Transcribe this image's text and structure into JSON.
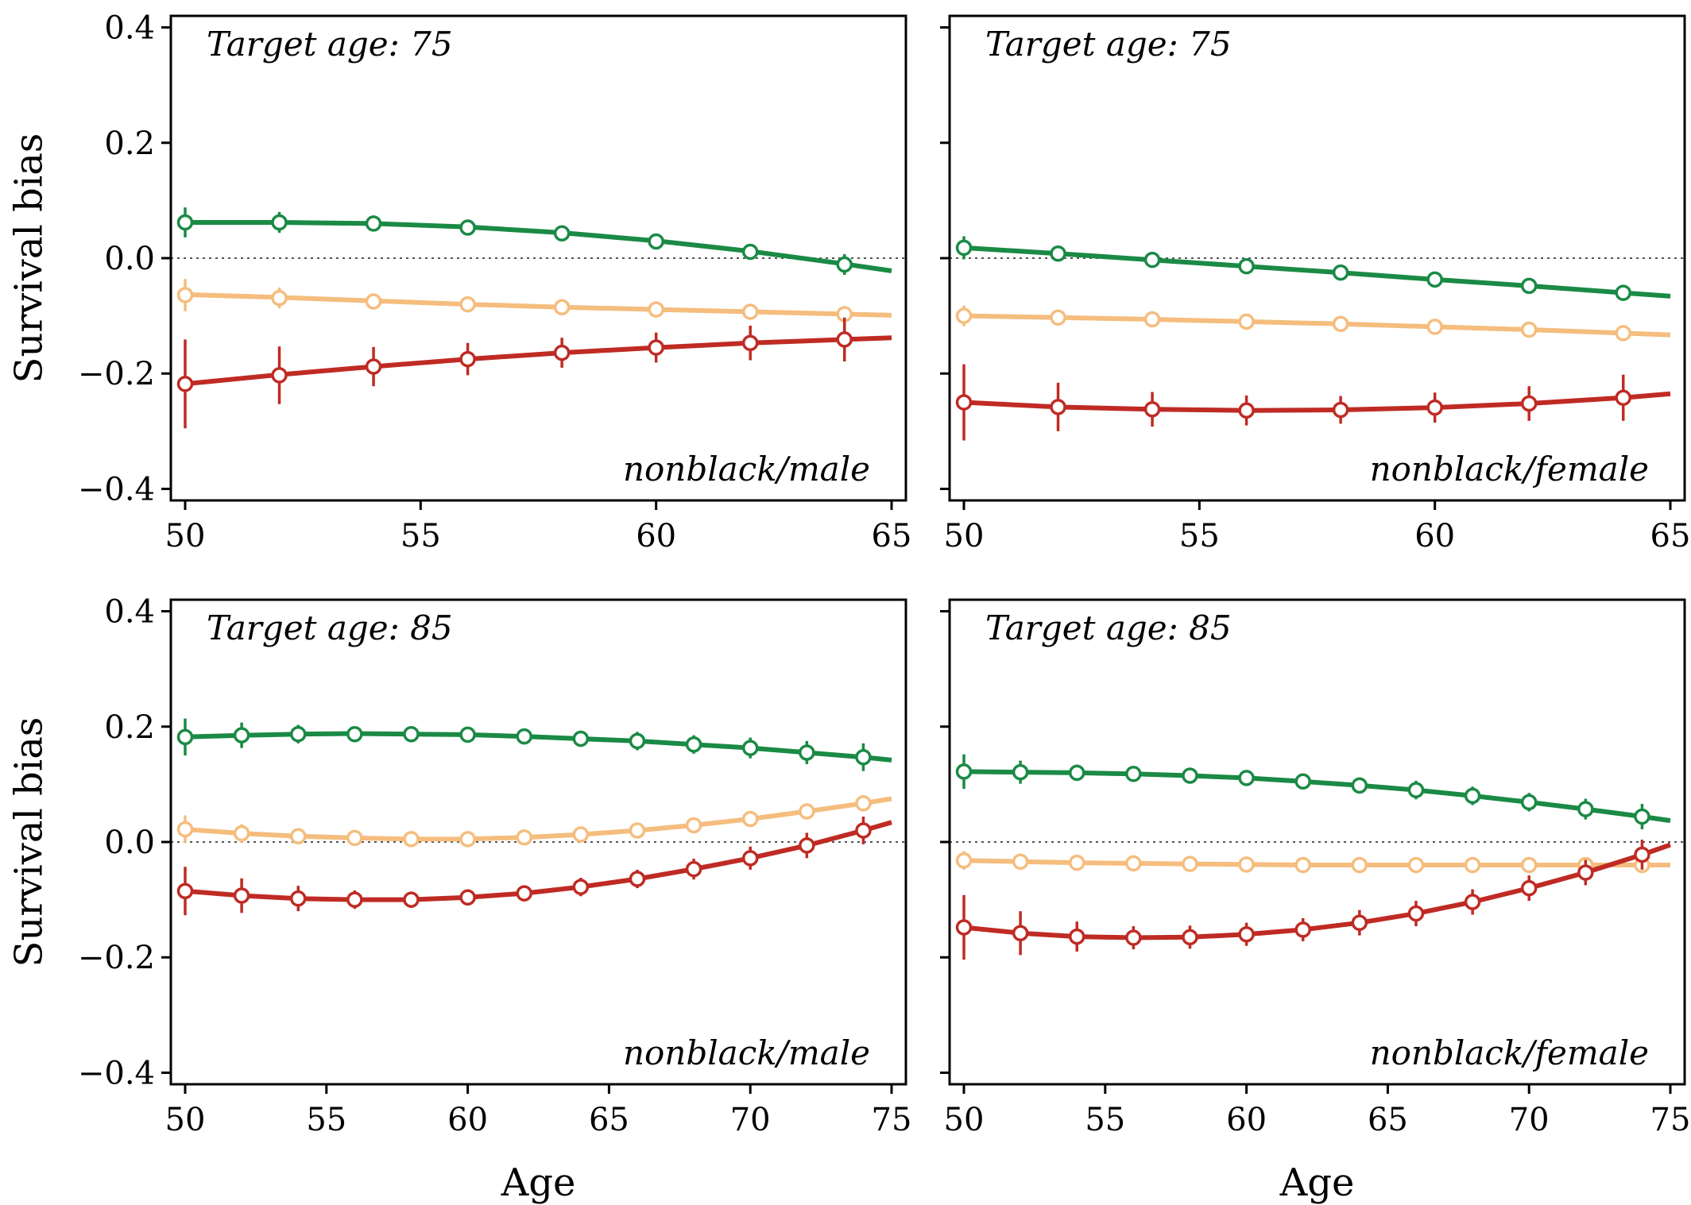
{
  "colors": {
    "green": "#1a8a45",
    "orange": "#f5bd7e",
    "red": "#bf2b24",
    "zero_line": "#555555"
  },
  "chart_data": [
    {
      "type": "line",
      "ylabel": "Survival bias",
      "xlabel": "",
      "xlim": [
        50,
        65
      ],
      "ylim": [
        -0.42,
        0.42
      ],
      "xticks": [
        "50",
        "55",
        "60",
        "65"
      ],
      "yticks": [
        "0.4",
        "0.2",
        "0.0",
        "−0.2",
        "−0.4"
      ],
      "annotation_top": "Target age: 75",
      "annotation_bottom": "nonblack/male",
      "marker_x": [
        50,
        52,
        54,
        56,
        58,
        60,
        62,
        64
      ],
      "series": [
        {
          "color": "green",
          "curve": [
            [
              50,
              0.062
            ],
            [
              52,
              0.062
            ],
            [
              54,
              0.06
            ],
            [
              56,
              0.054
            ],
            [
              58,
              0.044
            ],
            [
              60,
              0.03
            ],
            [
              62,
              0.012
            ],
            [
              64,
              -0.01
            ],
            [
              65,
              -0.022
            ]
          ],
          "points": [
            0.062,
            0.062,
            0.06,
            0.053,
            0.043,
            0.029,
            0.011,
            -0.011
          ],
          "err": [
            0.026,
            0.018,
            0.01,
            0.01,
            0.01,
            0.01,
            0.012,
            0.018
          ]
        },
        {
          "color": "orange",
          "curve": [
            [
              50,
              -0.063
            ],
            [
              52,
              -0.068
            ],
            [
              54,
              -0.074
            ],
            [
              56,
              -0.08
            ],
            [
              58,
              -0.085
            ],
            [
              60,
              -0.089
            ],
            [
              62,
              -0.093
            ],
            [
              64,
              -0.097
            ],
            [
              65,
              -0.099
            ]
          ],
          "points": [
            -0.064,
            -0.069,
            -0.075,
            -0.08,
            -0.085,
            -0.089,
            -0.093,
            -0.097
          ],
          "err": [
            0.028,
            0.018,
            0.012,
            0.01,
            0.01,
            0.01,
            0.01,
            0.012
          ]
        },
        {
          "color": "red",
          "curve": [
            [
              50,
              -0.218
            ],
            [
              52,
              -0.202
            ],
            [
              54,
              -0.188
            ],
            [
              56,
              -0.175
            ],
            [
              58,
              -0.164
            ],
            [
              60,
              -0.155
            ],
            [
              62,
              -0.147
            ],
            [
              64,
              -0.141
            ],
            [
              65,
              -0.138
            ]
          ],
          "points": [
            -0.218,
            -0.203,
            -0.188,
            -0.175,
            -0.164,
            -0.155,
            -0.147,
            -0.141
          ],
          "err": [
            0.077,
            0.05,
            0.034,
            0.028,
            0.026,
            0.026,
            0.03,
            0.038
          ]
        }
      ]
    },
    {
      "type": "line",
      "ylabel": "",
      "xlabel": "",
      "xlim": [
        50,
        65
      ],
      "ylim": [
        -0.42,
        0.42
      ],
      "xticks": [
        "50",
        "55",
        "60",
        "65"
      ],
      "yticks": [],
      "annotation_top": "Target age: 75",
      "annotation_bottom": "nonblack/female",
      "marker_x": [
        50,
        52,
        54,
        56,
        58,
        60,
        62,
        64
      ],
      "series": [
        {
          "color": "green",
          "curve": [
            [
              50,
              0.018
            ],
            [
              52,
              0.008
            ],
            [
              54,
              -0.003
            ],
            [
              56,
              -0.014
            ],
            [
              58,
              -0.025
            ],
            [
              60,
              -0.037
            ],
            [
              62,
              -0.048
            ],
            [
              64,
              -0.06
            ],
            [
              65,
              -0.066
            ]
          ],
          "points": [
            0.018,
            0.008,
            -0.003,
            -0.014,
            -0.025,
            -0.037,
            -0.048,
            -0.06
          ],
          "err": [
            0.02,
            0.012,
            0.01,
            0.01,
            0.01,
            0.01,
            0.01,
            0.01
          ]
        },
        {
          "color": "orange",
          "curve": [
            [
              50,
              -0.1
            ],
            [
              52,
              -0.103
            ],
            [
              54,
              -0.106
            ],
            [
              56,
              -0.11
            ],
            [
              58,
              -0.114
            ],
            [
              60,
              -0.119
            ],
            [
              62,
              -0.124
            ],
            [
              64,
              -0.13
            ],
            [
              65,
              -0.133
            ]
          ],
          "points": [
            -0.1,
            -0.103,
            -0.106,
            -0.11,
            -0.114,
            -0.119,
            -0.124,
            -0.13
          ],
          "err": [
            0.018,
            0.012,
            0.01,
            0.01,
            0.01,
            0.01,
            0.01,
            0.012
          ]
        },
        {
          "color": "red",
          "curve": [
            [
              50,
              -0.25
            ],
            [
              52,
              -0.258
            ],
            [
              54,
              -0.262
            ],
            [
              56,
              -0.264
            ],
            [
              58,
              -0.263
            ],
            [
              60,
              -0.259
            ],
            [
              62,
              -0.252
            ],
            [
              64,
              -0.242
            ],
            [
              65,
              -0.235
            ]
          ],
          "points": [
            -0.25,
            -0.258,
            -0.262,
            -0.264,
            -0.263,
            -0.259,
            -0.252,
            -0.242
          ],
          "err": [
            0.066,
            0.042,
            0.03,
            0.026,
            0.024,
            0.026,
            0.03,
            0.04
          ]
        }
      ]
    },
    {
      "type": "line",
      "ylabel": "Survival bias",
      "xlabel": "Age",
      "xlim": [
        50,
        75
      ],
      "ylim": [
        -0.42,
        0.42
      ],
      "xticks": [
        "50",
        "55",
        "60",
        "65",
        "70",
        "75"
      ],
      "yticks": [
        "0.4",
        "0.2",
        "0.0",
        "−0.2",
        "−0.4"
      ],
      "annotation_top": "Target age: 85",
      "annotation_bottom": "nonblack/male",
      "marker_x": [
        50,
        52,
        54,
        56,
        58,
        60,
        62,
        64,
        66,
        68,
        70,
        72,
        74
      ],
      "series": [
        {
          "color": "green",
          "curve": [
            [
              50,
              0.182
            ],
            [
              52,
              0.185
            ],
            [
              54,
              0.187
            ],
            [
              56,
              0.188
            ],
            [
              58,
              0.187
            ],
            [
              60,
              0.186
            ],
            [
              62,
              0.183
            ],
            [
              64,
              0.179
            ],
            [
              66,
              0.175
            ],
            [
              68,
              0.169
            ],
            [
              70,
              0.163
            ],
            [
              72,
              0.155
            ],
            [
              74,
              0.147
            ],
            [
              75,
              0.142
            ]
          ],
          "points": [
            0.182,
            0.185,
            0.187,
            0.187,
            0.187,
            0.186,
            0.183,
            0.179,
            0.175,
            0.169,
            0.163,
            0.155,
            0.147
          ],
          "err": [
            0.032,
            0.022,
            0.016,
            0.013,
            0.012,
            0.012,
            0.012,
            0.014,
            0.016,
            0.016,
            0.018,
            0.02,
            0.024
          ]
        },
        {
          "color": "orange",
          "curve": [
            [
              50,
              0.022
            ],
            [
              52,
              0.015
            ],
            [
              54,
              0.01
            ],
            [
              56,
              0.007
            ],
            [
              58,
              0.005
            ],
            [
              60,
              0.005
            ],
            [
              62,
              0.008
            ],
            [
              64,
              0.013
            ],
            [
              66,
              0.02
            ],
            [
              68,
              0.029
            ],
            [
              70,
              0.04
            ],
            [
              72,
              0.053
            ],
            [
              74,
              0.067
            ],
            [
              75,
              0.075
            ]
          ],
          "points": [
            0.022,
            0.015,
            0.01,
            0.007,
            0.005,
            0.005,
            0.008,
            0.013,
            0.02,
            0.029,
            0.04,
            0.053,
            0.067
          ],
          "err": [
            0.024,
            0.016,
            0.01,
            0.008,
            0.008,
            0.008,
            0.008,
            0.008,
            0.01,
            0.01,
            0.012,
            0.012,
            0.014
          ]
        },
        {
          "color": "red",
          "curve": [
            [
              50,
              -0.085
            ],
            [
              52,
              -0.093
            ],
            [
              54,
              -0.098
            ],
            [
              56,
              -0.1
            ],
            [
              58,
              -0.1
            ],
            [
              60,
              -0.096
            ],
            [
              62,
              -0.089
            ],
            [
              64,
              -0.078
            ],
            [
              66,
              -0.064
            ],
            [
              68,
              -0.047
            ],
            [
              70,
              -0.028
            ],
            [
              72,
              -0.006
            ],
            [
              74,
              0.02
            ],
            [
              75,
              0.034
            ]
          ],
          "points": [
            -0.085,
            -0.093,
            -0.098,
            -0.1,
            -0.1,
            -0.096,
            -0.089,
            -0.078,
            -0.064,
            -0.047,
            -0.028,
            -0.006,
            0.02
          ],
          "err": [
            0.042,
            0.03,
            0.022,
            0.016,
            0.014,
            0.014,
            0.014,
            0.016,
            0.016,
            0.018,
            0.02,
            0.022,
            0.024
          ]
        }
      ]
    },
    {
      "type": "line",
      "ylabel": "",
      "xlabel": "Age",
      "xlim": [
        50,
        75
      ],
      "ylim": [
        -0.42,
        0.42
      ],
      "xticks": [
        "50",
        "55",
        "60",
        "65",
        "70",
        "75"
      ],
      "yticks": [],
      "annotation_top": "Target age: 85",
      "annotation_bottom": "nonblack/female",
      "marker_x": [
        50,
        52,
        54,
        56,
        58,
        60,
        62,
        64,
        66,
        68,
        70,
        72,
        74
      ],
      "series": [
        {
          "color": "green",
          "curve": [
            [
              50,
              0.122
            ],
            [
              52,
              0.121
            ],
            [
              54,
              0.12
            ],
            [
              56,
              0.118
            ],
            [
              58,
              0.115
            ],
            [
              60,
              0.111
            ],
            [
              62,
              0.105
            ],
            [
              64,
              0.098
            ],
            [
              66,
              0.09
            ],
            [
              68,
              0.08
            ],
            [
              70,
              0.069
            ],
            [
              72,
              0.057
            ],
            [
              74,
              0.044
            ],
            [
              75,
              0.037
            ]
          ],
          "points": [
            0.122,
            0.121,
            0.12,
            0.118,
            0.115,
            0.111,
            0.105,
            0.098,
            0.09,
            0.08,
            0.069,
            0.057,
            0.044
          ],
          "err": [
            0.03,
            0.02,
            0.014,
            0.012,
            0.012,
            0.012,
            0.012,
            0.014,
            0.016,
            0.016,
            0.016,
            0.018,
            0.022
          ]
        },
        {
          "color": "orange",
          "curve": [
            [
              50,
              -0.032
            ],
            [
              52,
              -0.034
            ],
            [
              54,
              -0.036
            ],
            [
              56,
              -0.037
            ],
            [
              58,
              -0.038
            ],
            [
              60,
              -0.039
            ],
            [
              62,
              -0.04
            ],
            [
              64,
              -0.04
            ],
            [
              66,
              -0.04
            ],
            [
              68,
              -0.04
            ],
            [
              70,
              -0.04
            ],
            [
              72,
              -0.04
            ],
            [
              74,
              -0.04
            ],
            [
              75,
              -0.04
            ]
          ],
          "points": [
            -0.032,
            -0.034,
            -0.036,
            -0.037,
            -0.038,
            -0.039,
            -0.04,
            -0.04,
            -0.04,
            -0.04,
            -0.04,
            -0.04,
            -0.04
          ],
          "err": [
            0.016,
            0.014,
            0.01,
            0.008,
            0.008,
            0.008,
            0.008,
            0.008,
            0.008,
            0.008,
            0.008,
            0.008,
            0.01
          ]
        },
        {
          "color": "red",
          "curve": [
            [
              50,
              -0.148
            ],
            [
              52,
              -0.158
            ],
            [
              54,
              -0.164
            ],
            [
              56,
              -0.166
            ],
            [
              58,
              -0.165
            ],
            [
              60,
              -0.16
            ],
            [
              62,
              -0.152
            ],
            [
              64,
              -0.14
            ],
            [
              66,
              -0.124
            ],
            [
              68,
              -0.104
            ],
            [
              70,
              -0.08
            ],
            [
              72,
              -0.053
            ],
            [
              74,
              -0.022
            ],
            [
              75,
              -0.005
            ]
          ],
          "points": [
            -0.148,
            -0.158,
            -0.164,
            -0.166,
            -0.165,
            -0.16,
            -0.152,
            -0.14,
            -0.124,
            -0.104,
            -0.08,
            -0.053,
            -0.022
          ],
          "err": [
            0.056,
            0.038,
            0.026,
            0.02,
            0.02,
            0.02,
            0.02,
            0.022,
            0.022,
            0.022,
            0.022,
            0.022,
            0.026
          ]
        }
      ]
    }
  ]
}
